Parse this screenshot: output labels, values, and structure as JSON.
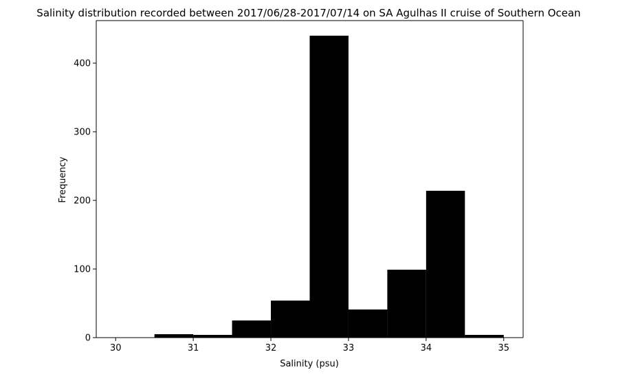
{
  "chart_data": {
    "type": "bar",
    "title": "Salinity distribution recorded between 2017/06/28-2017/07/14 on SA Agulhas II cruise of Southern Ocean",
    "xlabel": "Salinity (psu)",
    "ylabel": "Frequency",
    "bin_edges": [
      30.0,
      30.5,
      31.0,
      31.5,
      32.0,
      32.5,
      33.0,
      33.5,
      34.0,
      34.5,
      35.0
    ],
    "values": [
      0,
      5,
      4,
      25,
      54,
      440,
      41,
      99,
      214,
      4
    ],
    "xlim": [
      29.75,
      35.25
    ],
    "ylim": [
      0,
      462
    ],
    "xticks": [
      30,
      31,
      32,
      33,
      34,
      35
    ],
    "yticks": [
      0,
      100,
      200,
      300,
      400
    ],
    "grid": false,
    "bar_color": "#000000"
  }
}
